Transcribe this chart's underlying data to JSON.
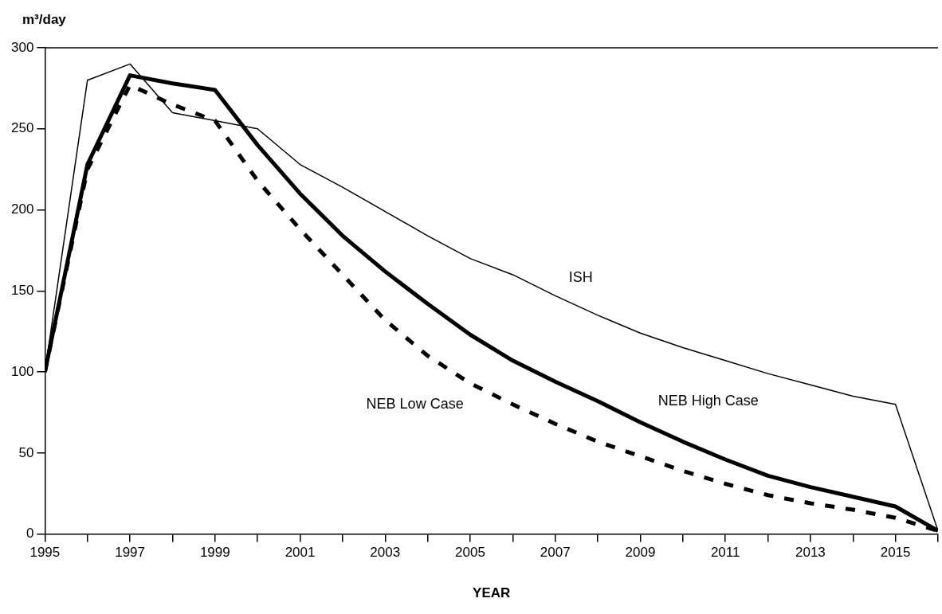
{
  "chart_data": {
    "type": "line",
    "xlabel": "YEAR",
    "ylabel": "m³/day",
    "x": [
      1995,
      1996,
      1997,
      1998,
      1999,
      2000,
      2001,
      2002,
      2003,
      2004,
      2005,
      2006,
      2007,
      2008,
      2009,
      2010,
      2011,
      2012,
      2013,
      2014,
      2015,
      2016
    ],
    "xlim": [
      1995,
      2016
    ],
    "xticks": [
      1995,
      {
        "value": 1996,
        "label": null
      },
      1997,
      {
        "value": 1998,
        "label": null
      },
      1999,
      {
        "value": 2000,
        "label": null
      },
      2001,
      {
        "value": 2002,
        "label": null
      },
      2003,
      {
        "value": 2004,
        "label": null
      },
      2005,
      {
        "value": 2006,
        "label": null
      },
      2007,
      {
        "value": 2008,
        "label": null
      },
      2009,
      {
        "value": 2010,
        "label": null
      },
      2011,
      {
        "value": 2012,
        "label": null
      },
      2013,
      {
        "value": 2014,
        "label": null
      },
      2015,
      {
        "value": 2016,
        "label": null
      }
    ],
    "ylim": [
      0,
      300
    ],
    "yticks": [
      0,
      50,
      100,
      150,
      200,
      250,
      300
    ],
    "grid": false,
    "legend": false,
    "marker": "none",
    "series": [
      {
        "name": "ISH",
        "color": "#000000",
        "line_style": "solid",
        "values": [
          100,
          280,
          290,
          260,
          255,
          250,
          228,
          214,
          199,
          184,
          170,
          160,
          147,
          135,
          124,
          115,
          107,
          99,
          92,
          85,
          80,
          2
        ]
      },
      {
        "name": "NEB High Case",
        "color": "#000000",
        "line_style": "solid",
        "values": [
          100,
          228,
          283,
          278,
          274,
          240,
          210,
          184,
          162,
          142,
          123,
          107,
          94,
          82,
          69,
          57,
          46,
          36,
          29,
          23,
          17,
          2
        ]
      },
      {
        "name": "NEB Low Case",
        "color": "#000000",
        "line_style": "dashed",
        "values": [
          100,
          225,
          277,
          265,
          255,
          218,
          188,
          160,
          132,
          110,
          93,
          80,
          68,
          57,
          48,
          39,
          31,
          24,
          19,
          15,
          10,
          2
        ]
      }
    ]
  }
}
